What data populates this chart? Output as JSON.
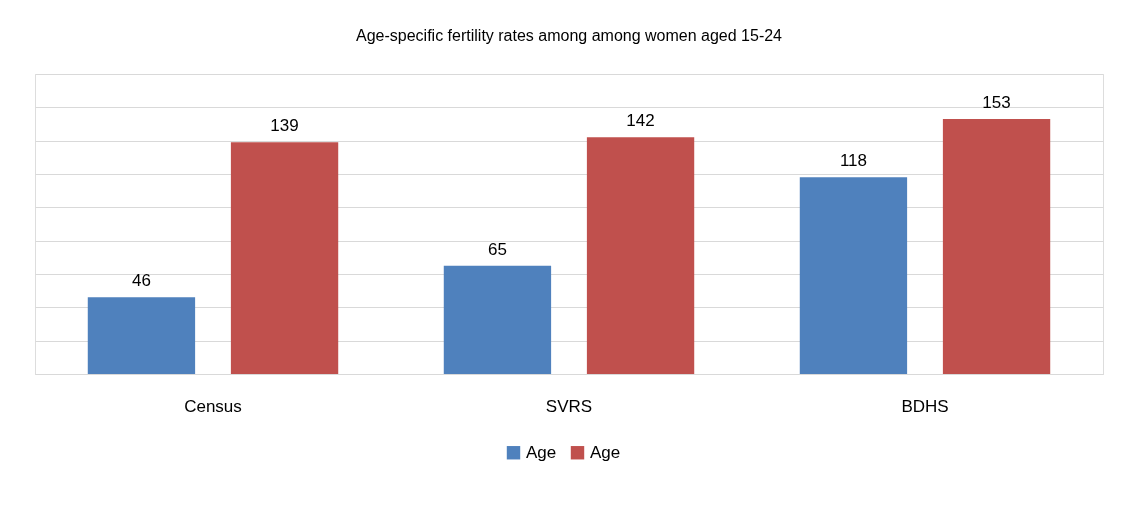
{
  "chart_data": {
    "type": "bar",
    "title": "Age-specific fertility rates among among women aged 15-24",
    "categories": [
      "Census",
      "SVRS",
      "BDHS"
    ],
    "series": [
      {
        "name": "Age",
        "color": "#4f81bd",
        "values": [
          46,
          65,
          118
        ]
      },
      {
        "name": "Age",
        "color": "#c0504d",
        "values": [
          139,
          142,
          153
        ]
      }
    ],
    "ylim": [
      0,
      180
    ],
    "yticks": [
      {
        "value": 0,
        "label": null
      },
      {
        "value": 20,
        "label": null
      },
      {
        "value": 40,
        "label": null
      },
      {
        "value": 60,
        "label": null
      },
      {
        "value": 80,
        "label": null
      },
      {
        "value": 100,
        "label": null
      },
      {
        "value": 120,
        "label": null
      },
      {
        "value": 140,
        "label": null
      },
      {
        "value": 160,
        "label": null
      },
      {
        "value": 180,
        "label": null
      }
    ],
    "tick_labels": "x",
    "grid": "y",
    "legend": "bottom",
    "data_labels": true
  }
}
